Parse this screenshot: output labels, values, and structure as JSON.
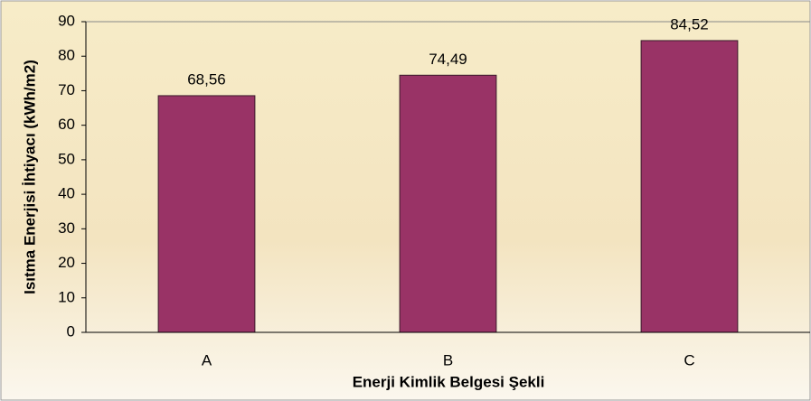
{
  "chart_data": {
    "type": "bar",
    "xlabel": "Enerji Kimlik Belgesi Şekli",
    "ylabel": "Isıtma Enerjisi İhtiyacı (kWh/m2)",
    "categories": [
      "A",
      "B",
      "C"
    ],
    "values": [
      68.56,
      74.49,
      84.52
    ],
    "value_labels": [
      "68,56",
      "74,49",
      "84,52"
    ],
    "color": "#993366",
    "ylim": [
      0,
      90
    ],
    "yticks": [
      0,
      10,
      20,
      30,
      40,
      50,
      60,
      70,
      80,
      90
    ],
    "grid": false
  }
}
